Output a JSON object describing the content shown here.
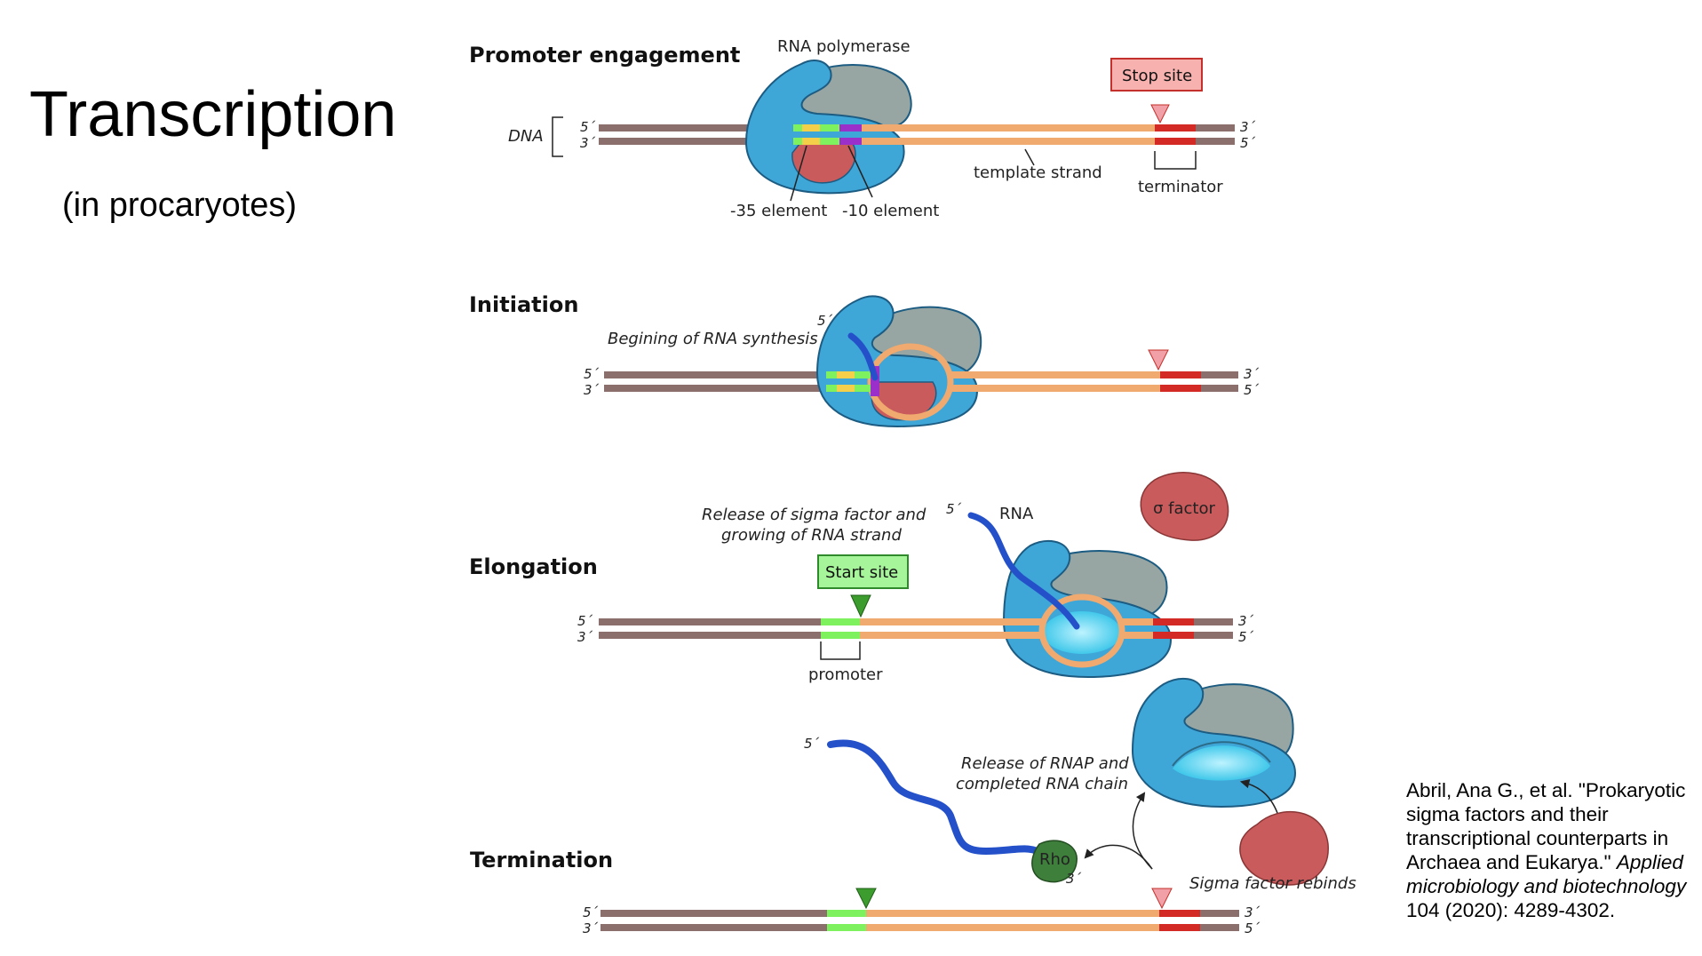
{
  "slide": {
    "title": "Transcription",
    "subtitle": "(in procaryotes)"
  },
  "citation": {
    "lead": "Abril, Ana G., et al. \"Prokaryotic sigma factors and their transcriptional counterparts in Archaea and Eukarya.\"",
    "journal": "Applied microbiology and biotechnology",
    "tail": "104 (2020): 4289-4302."
  },
  "diagram": {
    "strand_ends": {
      "five_prime": "5´",
      "three_prime": "3´"
    },
    "promoter_engagement": {
      "heading": "Promoter engagement",
      "dna_label": "DNA",
      "rna_polymerase_label": "RNA polymerase",
      "stop_site_label": "Stop site",
      "template_strand_label": "template strand",
      "terminator_label": "terminator",
      "minus35_label": "-35 element",
      "minus10_label": "-10 element"
    },
    "initiation": {
      "heading": "Initiation",
      "note": "Begining of RNA synthesis"
    },
    "elongation": {
      "heading": "Elongation",
      "note_line1": "Release of sigma factor and",
      "note_line2": "growing of RNA strand",
      "rna_label": "RNA",
      "sigma_label": "σ factor",
      "start_site_label": "Start site",
      "promoter_label": "promoter"
    },
    "termination": {
      "heading": "Termination",
      "note_line1": "Release of RNAP and",
      "note_line2": "completed RNA chain",
      "rho_label": "Rho",
      "sigma_rebinds_label": "Sigma factor rebinds"
    },
    "colors": {
      "dna_strand": "#8b6f6c",
      "template_strand": "#f0a96e",
      "polymerase_body": "#3fa6d8",
      "polymerase_cap": "#97a6a2",
      "sigma_factor": "#c95b5c",
      "rna": "#2451c9",
      "rho": "#3f7f3c",
      "minus35": "#f4d04a",
      "minus10": "#9b2fc9",
      "promoter_green": "#7df25e",
      "terminator": "#d32a26",
      "stop_marker": "#f0a0a6",
      "start_marker": "#3c9c2e",
      "stop_box": "#f7b1ae",
      "start_box": "#a6f59a"
    }
  }
}
